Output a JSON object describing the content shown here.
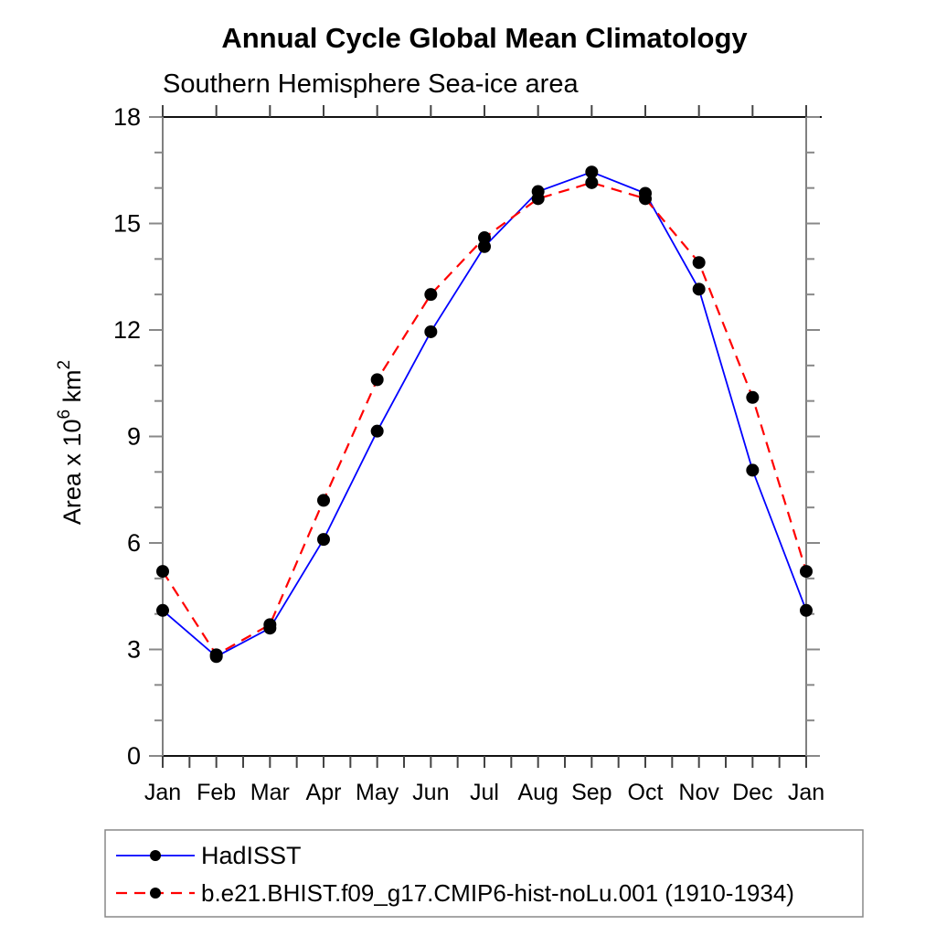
{
  "title": "Annual Cycle Global Mean Climatology",
  "subtitle": "Southern Hemisphere Sea-ice area",
  "palette": {
    "frame_horizontal": "#111111",
    "frame_vertical": "#808080",
    "tick_vertical_axis": "#888888",
    "tick_horizontal_axis": "#444444",
    "text": "#000000",
    "legend_border": "#888888",
    "background": "#ffffff"
  },
  "chart_data": {
    "type": "line",
    "title": "Annual Cycle Global Mean Climatology",
    "subtitle": "Southern Hemisphere Sea-ice area",
    "x_categories": [
      "Jan",
      "Feb",
      "Mar",
      "Apr",
      "May",
      "Jun",
      "Jul",
      "Aug",
      "Sep",
      "Oct",
      "Nov",
      "Dec",
      "Jan"
    ],
    "xlabel": "",
    "ylabel": {
      "text": "Area x 10^6 km^2",
      "prefix": "Area x 10",
      "sup1": "6",
      "mid": " km",
      "sup2": "2"
    },
    "ylim": [
      0,
      18
    ],
    "ytick_major": [
      0,
      3,
      6,
      9,
      12,
      15,
      18
    ],
    "ytick_minor_step": 1,
    "xtick_minor_per_interval": 2,
    "grid": false,
    "legend_position": "bottom",
    "series": [
      {
        "name": "HadISST",
        "color": "#0000ff",
        "line_style": "solid",
        "line_width": 1.8,
        "marker": "circle",
        "marker_color": "#000000",
        "values": [
          4.1,
          2.8,
          3.6,
          6.1,
          9.15,
          11.95,
          14.35,
          15.9,
          16.45,
          15.85,
          13.15,
          8.05,
          4.1
        ]
      },
      {
        "name": "b.e21.BHIST.f09_g17.CMIP6-hist-noLu.001 (1910-1934)",
        "color": "#ff0000",
        "line_style": "dashed",
        "line_width": 2.2,
        "marker": "circle",
        "marker_color": "#000000",
        "values": [
          5.2,
          2.85,
          3.7,
          7.2,
          10.6,
          13.0,
          14.6,
          15.7,
          16.15,
          15.7,
          13.9,
          10.1,
          5.2
        ]
      }
    ]
  }
}
